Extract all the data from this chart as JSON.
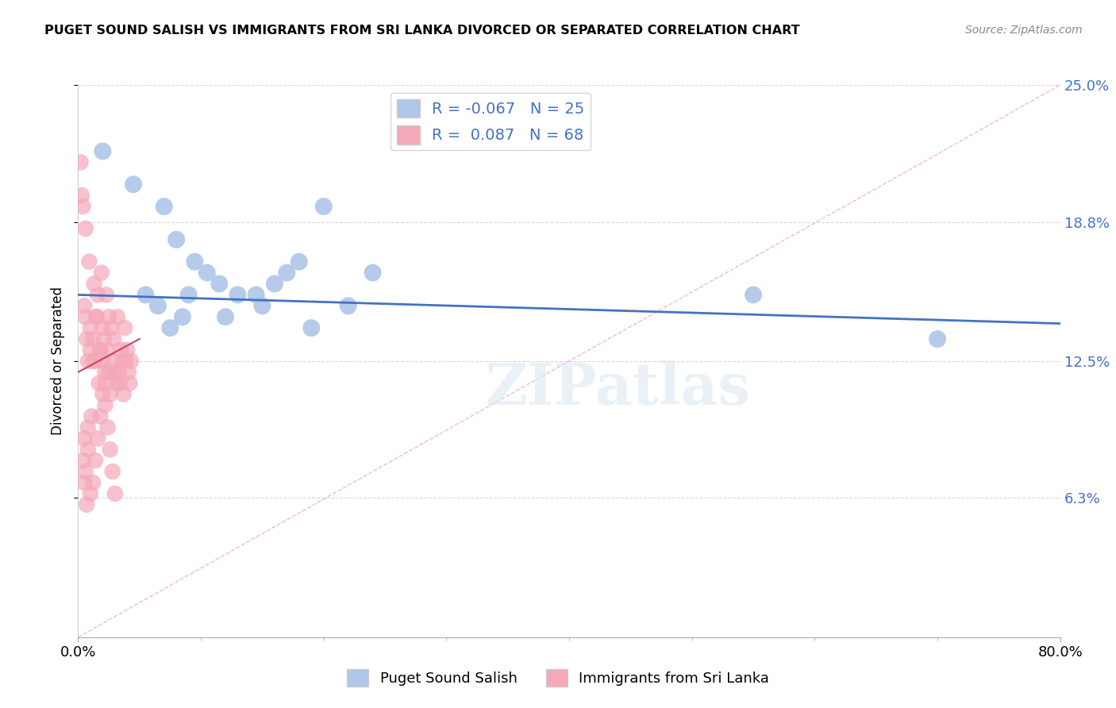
{
  "title": "PUGET SOUND SALISH VS IMMIGRANTS FROM SRI LANKA DIVORCED OR SEPARATED CORRELATION CHART",
  "source": "Source: ZipAtlas.com",
  "ylabel": "Divorced or Separated",
  "legend_label1": "Puget Sound Salish",
  "legend_label2": "Immigrants from Sri Lanka",
  "R1": -0.067,
  "N1": 25,
  "R2": 0.087,
  "N2": 68,
  "color1": "#aec6e8",
  "color2": "#f4a8b8",
  "line_color1": "#4472c4",
  "line_color2": "#d04060",
  "ref_line_color": "#f4a8b8",
  "xmin": 0.0,
  "xmax": 80.0,
  "ymin": 0.0,
  "ymax": 25.0,
  "yticks": [
    6.3,
    12.5,
    18.8,
    25.0
  ],
  "blue_dots_x": [
    2.0,
    4.5,
    7.0,
    8.0,
    9.5,
    10.5,
    11.5,
    13.0,
    15.0,
    17.0,
    18.0,
    20.0,
    22.0,
    24.0,
    55.0,
    70.0,
    5.5,
    6.5,
    12.0,
    14.5,
    7.5,
    8.5,
    9.0,
    16.0,
    19.0
  ],
  "blue_dots_y": [
    22.0,
    20.5,
    19.5,
    18.0,
    17.0,
    16.5,
    16.0,
    15.5,
    15.0,
    16.5,
    17.0,
    19.5,
    15.0,
    16.5,
    15.5,
    13.5,
    15.5,
    15.0,
    14.5,
    15.5,
    14.0,
    14.5,
    15.5,
    16.0,
    14.0
  ],
  "pink_dots_x": [
    0.2,
    0.3,
    0.4,
    0.5,
    0.6,
    0.7,
    0.8,
    0.9,
    1.0,
    1.1,
    1.2,
    1.3,
    1.4,
    1.5,
    1.6,
    1.7,
    1.8,
    1.9,
    2.0,
    2.1,
    2.2,
    2.3,
    2.4,
    2.5,
    2.6,
    2.7,
    2.8,
    2.9,
    3.0,
    3.1,
    3.2,
    3.3,
    3.4,
    3.5,
    3.6,
    3.7,
    3.8,
    3.9,
    4.0,
    4.1,
    4.2,
    4.3,
    0.5,
    0.6,
    0.7,
    0.8,
    1.0,
    1.2,
    1.5,
    1.8,
    2.0,
    2.2,
    2.5,
    0.4,
    0.5,
    0.6,
    0.8,
    1.0,
    1.2,
    1.4,
    1.6,
    1.8,
    2.0,
    2.2,
    2.4,
    2.6,
    2.8,
    3.0
  ],
  "pink_dots_y": [
    21.5,
    20.0,
    19.5,
    7.0,
    18.5,
    6.0,
    9.5,
    17.0,
    14.0,
    10.0,
    13.5,
    16.0,
    12.5,
    14.5,
    15.5,
    11.5,
    13.0,
    16.5,
    14.0,
    13.5,
    12.0,
    15.5,
    13.0,
    14.5,
    11.0,
    14.0,
    12.5,
    13.5,
    12.0,
    11.5,
    14.5,
    12.0,
    11.5,
    13.0,
    12.5,
    11.0,
    14.0,
    12.5,
    13.0,
    12.0,
    11.5,
    12.5,
    15.0,
    14.5,
    13.5,
    12.5,
    13.0,
    12.5,
    14.5,
    13.0,
    12.5,
    11.5,
    12.0,
    8.0,
    9.0,
    7.5,
    8.5,
    6.5,
    7.0,
    8.0,
    9.0,
    10.0,
    11.0,
    10.5,
    9.5,
    8.5,
    7.5,
    6.5
  ],
  "background_color": "#ffffff",
  "grid_color": "#d8d8d8",
  "watermark": "ZIPatlas",
  "blue_trend_x0": 0.0,
  "blue_trend_x1": 80.0,
  "blue_trend_y0": 15.5,
  "blue_trend_y1": 14.2,
  "pink_trend_x0": 0.0,
  "pink_trend_x1": 5.0,
  "pink_trend_y0": 12.0,
  "pink_trend_y1": 13.5
}
